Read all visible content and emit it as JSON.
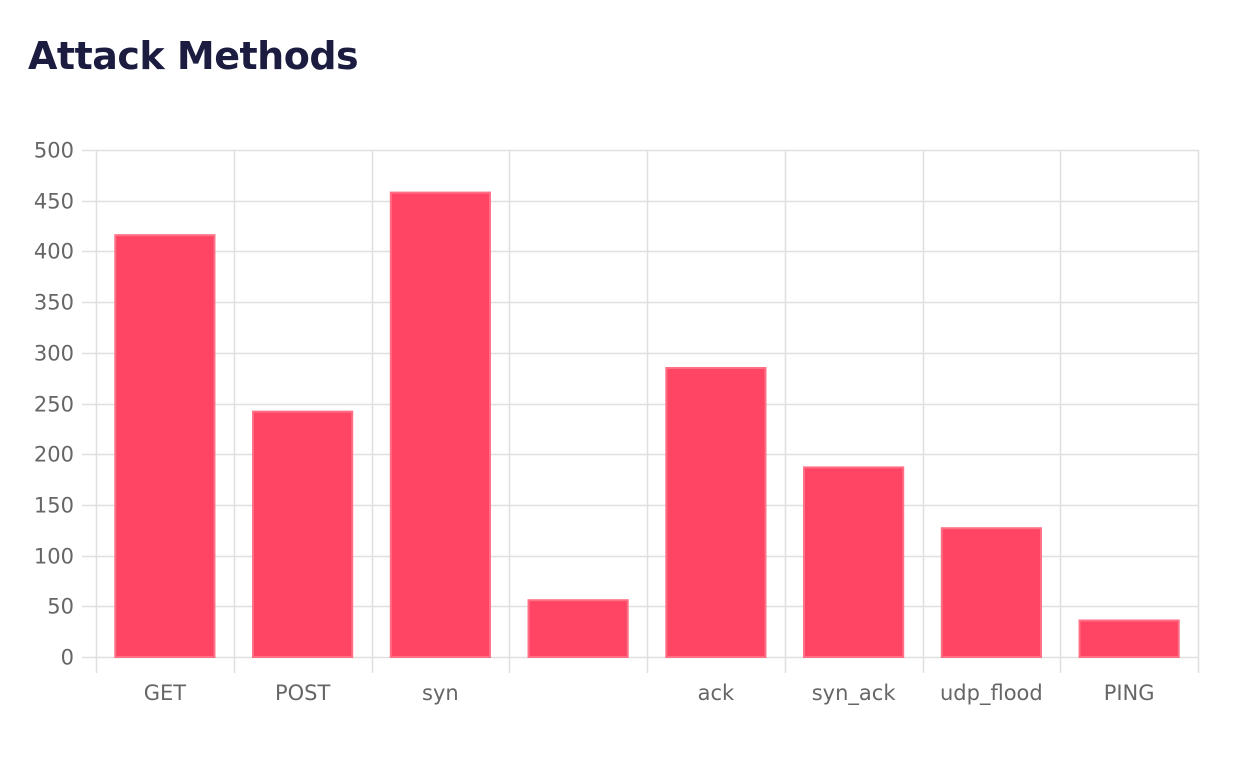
{
  "page": {
    "title": "Attack Methods"
  },
  "colors": {
    "bar_fill": "#ff4563",
    "bar_border": "#ff6f86",
    "grid": "#e0e0e0",
    "axis_text": "#666666",
    "title": "#1b1c3f"
  },
  "chart_data": {
    "type": "bar",
    "title": "Attack Methods",
    "xlabel": "",
    "ylabel": "",
    "categories": [
      "GET",
      "POST",
      "syn",
      "",
      "ack",
      "syn_ack",
      "udp_flood",
      "PING"
    ],
    "values": [
      416,
      242,
      458,
      56,
      285,
      187,
      127,
      36
    ],
    "ylim": [
      0,
      500
    ],
    "yticks": [
      0,
      50,
      100,
      150,
      200,
      250,
      300,
      350,
      400,
      450,
      500
    ],
    "grid": true,
    "legend": null
  }
}
